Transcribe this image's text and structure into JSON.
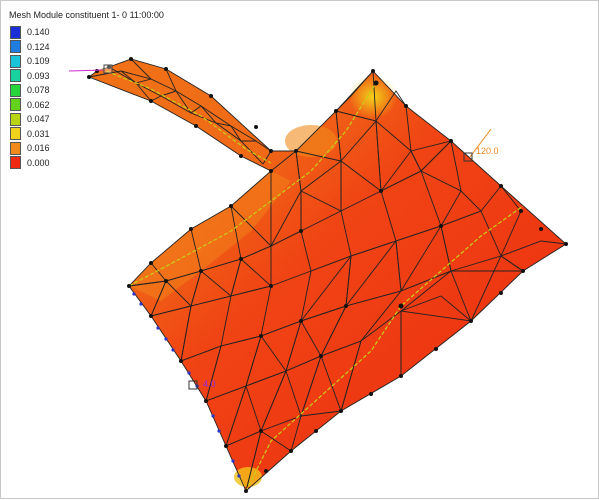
{
  "title": "Mesh Module constituent 1- 0 11:00:00",
  "legend": [
    {
      "value": "0.140",
      "color": "#1a2fd6"
    },
    {
      "value": "0.124",
      "color": "#1f7de0"
    },
    {
      "value": "0.109",
      "color": "#19c3d8"
    },
    {
      "value": "0.093",
      "color": "#19d39e"
    },
    {
      "value": "0.078",
      "color": "#27d43a"
    },
    {
      "value": "0.062",
      "color": "#63d21d"
    },
    {
      "value": "0.047",
      "color": "#b9d415"
    },
    {
      "value": "0.031",
      "color": "#f1d21a"
    },
    {
      "value": "0.016",
      "color": "#f08a1a"
    },
    {
      "value": "0.000",
      "color": "#f02a12"
    }
  ],
  "markers": {
    "left": {
      "label": "4.0",
      "color": "#8a2be2"
    },
    "right": {
      "label": "120.0",
      "color": "#f0861a"
    },
    "top": {
      "label": "",
      "color": "#d02ad0"
    }
  }
}
